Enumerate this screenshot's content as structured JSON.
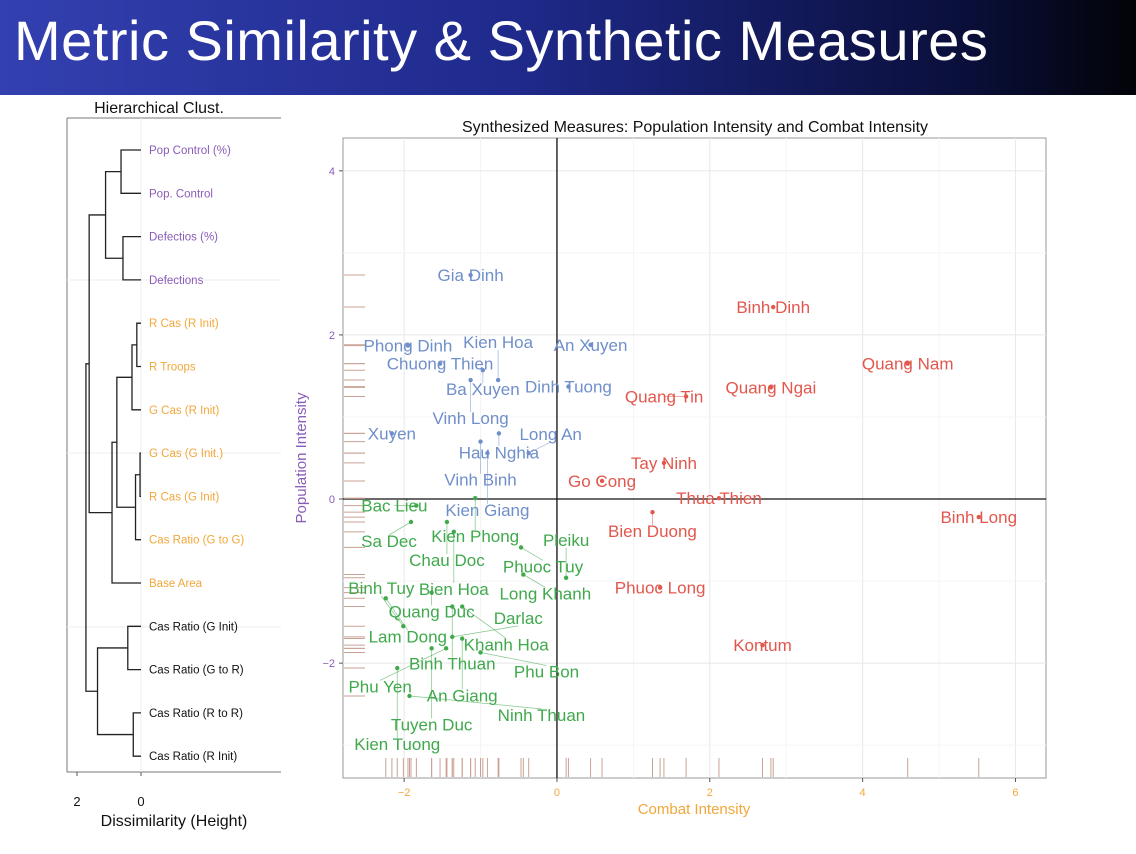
{
  "slide_title": "Metric Similarity & Synthetic Measures",
  "colors": {
    "blue": "#6f8fca",
    "red": "#e2574d",
    "green": "#3fa94c",
    "purple": "#8a5cb8",
    "orange": "#f2a73a",
    "black": "#111111"
  },
  "chart_data": [
    {
      "type": "dendrogram",
      "title": "Hierarchical Clust.",
      "xlabel": "Dissimilarity (Height)",
      "xticks": [
        "2",
        "0"
      ],
      "xlim": [
        2.3,
        -4.3
      ],
      "leaves": [
        {
          "label": "Pop Control (%)",
          "group": "purple"
        },
        {
          "label": "Pop. Control",
          "group": "purple"
        },
        {
          "label": "Defectios (%)",
          "group": "purple"
        },
        {
          "label": "Defections",
          "group": "purple"
        },
        {
          "label": "R Cas (R Init)",
          "group": "orange"
        },
        {
          "label": "R Troops",
          "group": "orange"
        },
        {
          "label": "G Cas (R Init)",
          "group": "orange"
        },
        {
          "label": "G Cas (G Init.)",
          "group": "orange"
        },
        {
          "label": "R Cas (G Init)",
          "group": "orange"
        },
        {
          "label": "Cas Ratio (G to G)",
          "group": "orange"
        },
        {
          "label": "Base Area",
          "group": "orange"
        },
        {
          "label": "Cas Ratio (G Init)",
          "group": "black"
        },
        {
          "label": "Cas Ratio (G to R)",
          "group": "black"
        },
        {
          "label": "Cas Ratio (R to R)",
          "group": "black"
        },
        {
          "label": "Cas Ratio (R Init)",
          "group": "black"
        }
      ],
      "merges": [
        {
          "a": "L0",
          "b": "L1",
          "height": 0.62
        },
        {
          "a": "L2",
          "b": "L3",
          "height": 0.56
        },
        {
          "a": "M0",
          "b": "M1",
          "height": 1.1
        },
        {
          "a": "L4",
          "b": "L5",
          "height": 0.13
        },
        {
          "a": "M3",
          "b": "L6",
          "height": 0.28
        },
        {
          "a": "L7",
          "b": "L8",
          "height": 0.03
        },
        {
          "a": "M5",
          "b": "L9",
          "height": 0.17
        },
        {
          "a": "M4",
          "b": "M6",
          "height": 0.75
        },
        {
          "a": "M7",
          "b": "L10",
          "height": 0.9
        },
        {
          "a": "M2",
          "b": "M8",
          "height": 1.61
        },
        {
          "a": "L11",
          "b": "L12",
          "height": 0.41
        },
        {
          "a": "L13",
          "b": "L14",
          "height": 0.24
        },
        {
          "a": "M10",
          "b": "M11",
          "height": 1.35
        },
        {
          "a": "M9",
          "b": "M12",
          "height": 1.71
        }
      ]
    },
    {
      "type": "scatter",
      "title": "Synthesized Measures: Population Intensity and Combat Intensity",
      "xlabel": "Combat Intensity",
      "ylabel": "Population Intensity",
      "xlim": [
        -2.8,
        6.4
      ],
      "ylim": [
        -3.4,
        4.4
      ],
      "xticks": [
        -2,
        0,
        2,
        4,
        6
      ],
      "yticks": [
        -2,
        0,
        2,
        4
      ],
      "grid": true,
      "rug": true,
      "points": [
        {
          "label": "Gia Dinh",
          "x": -1.13,
          "y": 2.73,
          "group": "blue"
        },
        {
          "label": "Phong Dinh",
          "x": -1.95,
          "y": 1.87,
          "group": "blue"
        },
        {
          "label": "An Xuyen",
          "x": 0.44,
          "y": 1.88,
          "group": "blue"
        },
        {
          "label": "Chuong Thien",
          "x": -1.53,
          "y": 1.65,
          "group": "blue"
        },
        {
          "label": "Ba Xuyen",
          "x": -0.97,
          "y": 1.57,
          "group": "blue"
        },
        {
          "label": "Vinh Long",
          "x": -1.13,
          "y": 1.45,
          "group": "blue"
        },
        {
          "label": "Kien Hoa",
          "x": -0.77,
          "y": 1.45,
          "group": "blue"
        },
        {
          "label": "Dinh Tuong",
          "x": 0.15,
          "y": 1.37,
          "group": "blue"
        },
        {
          "label": "Xuyen",
          "x": -2.16,
          "y": 0.8,
          "group": "blue"
        },
        {
          "label": "Hau Nghia",
          "x": -0.76,
          "y": 0.8,
          "group": "blue"
        },
        {
          "label": "Vinh Binh",
          "x": -1.0,
          "y": 0.7,
          "group": "blue"
        },
        {
          "label": "Kien Giang",
          "x": -0.91,
          "y": 0.56,
          "group": "blue"
        },
        {
          "label": "Long An",
          "x": -0.37,
          "y": 0.56,
          "group": "blue"
        },
        {
          "label": "Binh Dinh",
          "x": 2.83,
          "y": 2.34,
          "group": "red"
        },
        {
          "label": "Quang Nam",
          "x": 4.59,
          "y": 1.65,
          "group": "red"
        },
        {
          "label": "Quang Ngai",
          "x": 2.8,
          "y": 1.36,
          "group": "red"
        },
        {
          "label": "Quang Tin",
          "x": 1.69,
          "y": 1.25,
          "group": "red"
        },
        {
          "label": "Tay Ninh",
          "x": 1.4,
          "y": 0.44,
          "group": "red"
        },
        {
          "label": "Go Cong",
          "x": 0.59,
          "y": 0.22,
          "group": "red"
        },
        {
          "label": "Thua Thien",
          "x": 2.12,
          "y": 0.01,
          "group": "red"
        },
        {
          "label": "Bien Duong",
          "x": 1.25,
          "y": -0.16,
          "group": "red"
        },
        {
          "label": "Binh Long",
          "x": 5.52,
          "y": -0.22,
          "group": "red"
        },
        {
          "label": "Phuoc Long",
          "x": 1.35,
          "y": -1.08,
          "group": "red"
        },
        {
          "label": "Kontum",
          "x": 2.69,
          "y": -1.78,
          "group": "red"
        },
        {
          "label": "Kien Phong",
          "x": -1.07,
          "y": 0.01,
          "group": "green"
        },
        {
          "label": "Bac Lieu",
          "x": -1.84,
          "y": -0.08,
          "group": "green"
        },
        {
          "label": "Sa Dec",
          "x": -1.91,
          "y": -0.28,
          "group": "green"
        },
        {
          "label": "Chau Doc",
          "x": -1.44,
          "y": -0.28,
          "group": "green"
        },
        {
          "label": "Bien Hoa",
          "x": -1.35,
          "y": -0.4,
          "group": "green"
        },
        {
          "label": "Phuoc Tuy",
          "x": -0.47,
          "y": -0.59,
          "group": "green"
        },
        {
          "label": "Long Khanh",
          "x": -0.44,
          "y": -0.92,
          "group": "green"
        },
        {
          "label": "Pleiku",
          "x": 0.12,
          "y": -0.96,
          "group": "green"
        },
        {
          "label": "Quang Duc",
          "x": -1.64,
          "y": -1.14,
          "group": "green"
        },
        {
          "label": "Lam Dong",
          "x": -2.24,
          "y": -1.21,
          "group": "green"
        },
        {
          "label": "Khanh Hoa",
          "x": -1.24,
          "y": -1.31,
          "group": "green"
        },
        {
          "label": "Binh Thuan",
          "x": -1.37,
          "y": -1.31,
          "group": "green"
        },
        {
          "label": "Binh Tuy",
          "x": -2.01,
          "y": -1.55,
          "group": "green"
        },
        {
          "label": "Darlac",
          "x": -1.37,
          "y": -1.68,
          "group": "green"
        },
        {
          "label": "An Giang",
          "x": -1.24,
          "y": -1.7,
          "group": "green"
        },
        {
          "label": "Tuyen Duc",
          "x": -1.64,
          "y": -1.82,
          "group": "green"
        },
        {
          "label": "Phu Yen",
          "x": -1.45,
          "y": -1.82,
          "group": "green"
        },
        {
          "label": "Phu Bon",
          "x": -1.0,
          "y": -1.87,
          "group": "green"
        },
        {
          "label": "Kien Tuong",
          "x": -2.09,
          "y": -2.06,
          "group": "green"
        },
        {
          "label": "Ninh Thuan",
          "x": -1.93,
          "y": -2.4,
          "group": "green"
        }
      ]
    }
  ]
}
